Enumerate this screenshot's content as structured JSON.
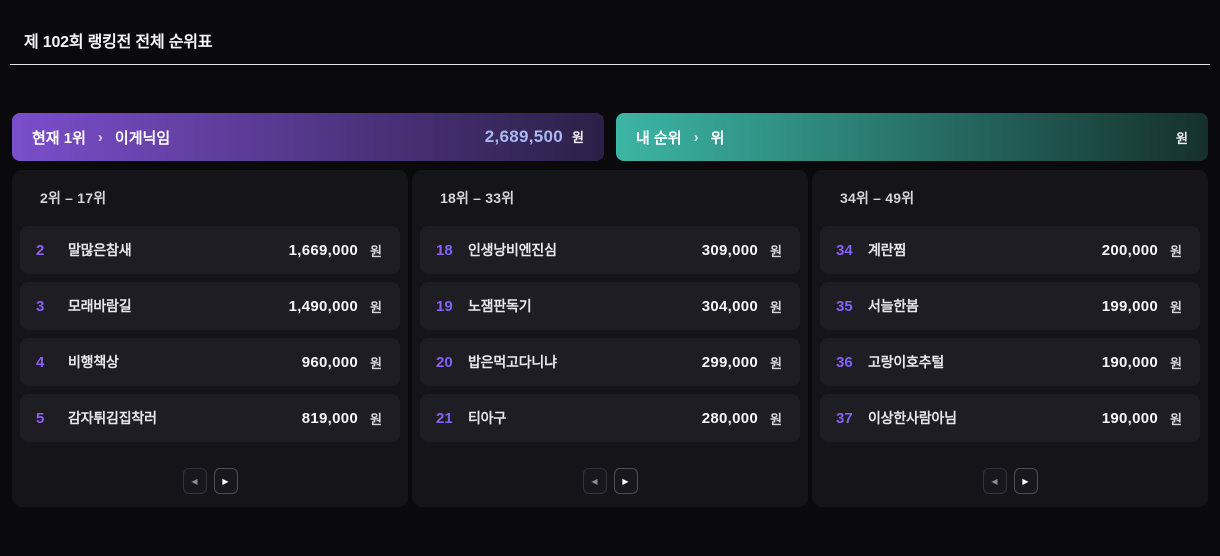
{
  "page": {
    "title": "제 102회 랭킹전 전체 순위표"
  },
  "banners": {
    "current_leader": {
      "label": "현재 1위",
      "chevron": "›",
      "name": "이게닉임",
      "amount": "2,689,500",
      "currency": "원",
      "gradient_from": "#7b4ecb",
      "gradient_to": "#2c2047",
      "amount_color": "#a9b9f0"
    },
    "my_rank": {
      "label": "내 순위",
      "chevron": "›",
      "rank_suffix": "위",
      "amount": "",
      "currency": "원",
      "gradient_from": "#3cb5a5",
      "gradient_to": "#16302d",
      "amount_color": "#ffffff"
    }
  },
  "pager": {
    "prev_icon": "◀",
    "next_icon": "▶"
  },
  "columns": [
    {
      "header": "2위 – 17위",
      "rows": [
        {
          "rank": "2",
          "name": "말많은참새",
          "amount": "1,669,000",
          "currency": "원"
        },
        {
          "rank": "3",
          "name": "모래바람길",
          "amount": "1,490,000",
          "currency": "원"
        },
        {
          "rank": "4",
          "name": "비행책상",
          "amount": "960,000",
          "currency": "원"
        },
        {
          "rank": "5",
          "name": "감자튀김집착러",
          "amount": "819,000",
          "currency": "원"
        }
      ]
    },
    {
      "header": "18위 – 33위",
      "rows": [
        {
          "rank": "18",
          "name": "인생낭비엔진심",
          "amount": "309,000",
          "currency": "원"
        },
        {
          "rank": "19",
          "name": "노잼판독기",
          "amount": "304,000",
          "currency": "원"
        },
        {
          "rank": "20",
          "name": "밥은먹고다니냐",
          "amount": "299,000",
          "currency": "원"
        },
        {
          "rank": "21",
          "name": "티아구",
          "amount": "280,000",
          "currency": "원"
        }
      ]
    },
    {
      "header": "34위 – 49위",
      "rows": [
        {
          "rank": "34",
          "name": "계란찜",
          "amount": "200,000",
          "currency": "원"
        },
        {
          "rank": "35",
          "name": "서늘한봄",
          "amount": "199,000",
          "currency": "원"
        },
        {
          "rank": "36",
          "name": "고랑이호추털",
          "amount": "190,000",
          "currency": "원"
        },
        {
          "rank": "37",
          "name": "이상한사람아님",
          "amount": "190,000",
          "currency": "원"
        }
      ]
    }
  ]
}
